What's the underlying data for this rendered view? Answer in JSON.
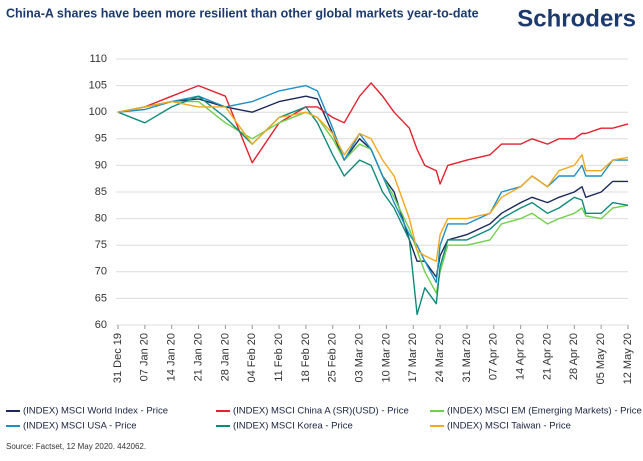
{
  "logo": "Schroders",
  "source": "Source: Factset, 12 May 2020. 442062.",
  "chart_data": {
    "type": "line",
    "title": "China-A shares have been more resilient than other global markets year-to-date",
    "x": [
      0,
      7,
      14,
      21,
      28,
      35,
      42,
      49,
      52,
      56,
      59,
      63,
      66,
      69,
      72,
      76,
      78,
      80,
      83,
      84,
      86,
      91,
      97,
      100,
      105,
      108,
      112,
      115,
      119,
      121,
      122,
      126,
      129,
      133
    ],
    "series": [
      {
        "name": "(INDEX) MSCI World Index - Price",
        "color": "#1b2a5c",
        "values": [
          100,
          101,
          102,
          102.5,
          101,
          100,
          102,
          103,
          102.5,
          96,
          91,
          95,
          93,
          88,
          85,
          76,
          72,
          72,
          69,
          73,
          76,
          77,
          79,
          81,
          83,
          84,
          83,
          84,
          85,
          86,
          84,
          85,
          87,
          87
        ]
      },
      {
        "name": "(INDEX) MSCI China A (SR)(USD) - Price",
        "color": "#e3212e",
        "values": [
          100,
          101,
          103,
          105,
          103,
          90.5,
          98,
          101,
          101,
          99,
          98,
          103,
          105.5,
          103,
          100,
          97,
          93,
          90,
          89,
          86.5,
          90,
          91,
          92,
          94,
          94,
          95,
          94,
          95,
          95,
          96,
          96,
          97,
          97,
          97.8
        ]
      },
      {
        "name": "(INDEX) MSCI EM (Emerging Markets) - Price",
        "color": "#6fd14a",
        "values": [
          100,
          101,
          102,
          102,
          98,
          95,
          98,
          100,
          99,
          95,
          91,
          94,
          93,
          88,
          84,
          78,
          74,
          70,
          66,
          70,
          75,
          75,
          76,
          79,
          80,
          81,
          79,
          80,
          81,
          82,
          80.5,
          80,
          82,
          82.5
        ]
      },
      {
        "name": "(INDEX) MSCI USA - Price",
        "color": "#1f8fc4",
        "values": [
          100,
          100.5,
          102,
          103,
          101,
          102,
          104,
          105,
          104,
          97,
          91,
          96,
          93,
          88,
          83,
          77,
          75,
          72,
          68,
          75,
          79,
          79,
          81,
          85,
          86,
          88,
          86,
          88,
          88,
          90,
          88,
          88,
          91,
          91
        ]
      },
      {
        "name": "(INDEX) MSCI Korea - Price",
        "color": "#0e8a7a",
        "values": [
          100,
          98,
          101,
          103,
          99,
          94,
          99,
          101,
          98,
          92,
          88,
          91,
          90,
          85,
          82,
          76,
          62,
          67,
          64,
          71,
          76,
          76,
          78,
          80,
          82,
          83,
          81,
          82,
          84,
          83.5,
          81,
          81,
          83,
          82.5
        ]
      },
      {
        "name": "(INDEX) MSCI Taiwan - Price",
        "color": "#f2a81d",
        "values": [
          100,
          101,
          102,
          101,
          101,
          94,
          99,
          100,
          99,
          96,
          92,
          96,
          95,
          91,
          88,
          80,
          74,
          73,
          72,
          77,
          80,
          80,
          81,
          84,
          86,
          88,
          86,
          89,
          90,
          92,
          89,
          89,
          91,
          91.5
        ]
      }
    ],
    "xlim": [
      0,
      133
    ],
    "xticks": [
      {
        "value": 0,
        "label": "31 Dec 19"
      },
      {
        "value": 7,
        "label": "07 Jan 20"
      },
      {
        "value": 14,
        "label": "14 Jan 20"
      },
      {
        "value": 21,
        "label": "21 Jan 20"
      },
      {
        "value": 28,
        "label": "28 Jan 20"
      },
      {
        "value": 35,
        "label": "04 Feb 20"
      },
      {
        "value": 42,
        "label": "11 Feb 20"
      },
      {
        "value": 49,
        "label": "18 Feb 20"
      },
      {
        "value": 56,
        "label": "25 Feb 20"
      },
      {
        "value": 63,
        "label": "03 Mar 20"
      },
      {
        "value": 70,
        "label": "10 Mar 20"
      },
      {
        "value": 77,
        "label": "17 Mar 20"
      },
      {
        "value": 84,
        "label": "24 Mar 20"
      },
      {
        "value": 91,
        "label": "31 Mar 20"
      },
      {
        "value": 98,
        "label": "07 Apr 20"
      },
      {
        "value": 105,
        "label": "14 Apr 20"
      },
      {
        "value": 112,
        "label": "21 Apr 20"
      },
      {
        "value": 119,
        "label": "28 Apr 20"
      },
      {
        "value": 126,
        "label": "05 May 20"
      },
      {
        "value": 133,
        "label": "12 May 20"
      }
    ],
    "ylim": [
      60,
      110
    ],
    "yticks": [
      60,
      65,
      70,
      75,
      80,
      85,
      90,
      95,
      100,
      105,
      110
    ],
    "grid": true
  }
}
